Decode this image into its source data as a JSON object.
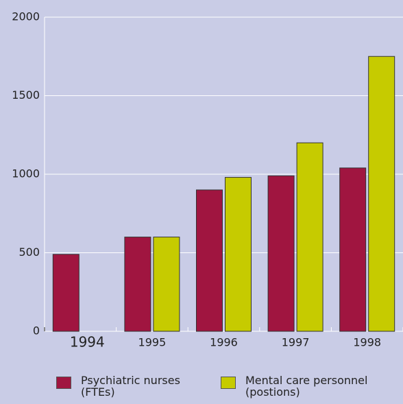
{
  "chart_data": {
    "type": "bar",
    "categories": [
      "1994",
      "1995",
      "1996",
      "1997",
      "1998"
    ],
    "series": [
      {
        "name": "Psychiatric nurses (FTEs)",
        "color": "#a01540",
        "values": [
          490,
          600,
          900,
          990,
          1040
        ]
      },
      {
        "name": "Mental care personnel (postions)",
        "color": "#c6cb00",
        "values": [
          null,
          600,
          980,
          1200,
          1750
        ]
      }
    ],
    "ylim": [
      0,
      2000
    ],
    "yticks": [
      0,
      500,
      1000,
      1500,
      2000
    ],
    "grid": true
  }
}
